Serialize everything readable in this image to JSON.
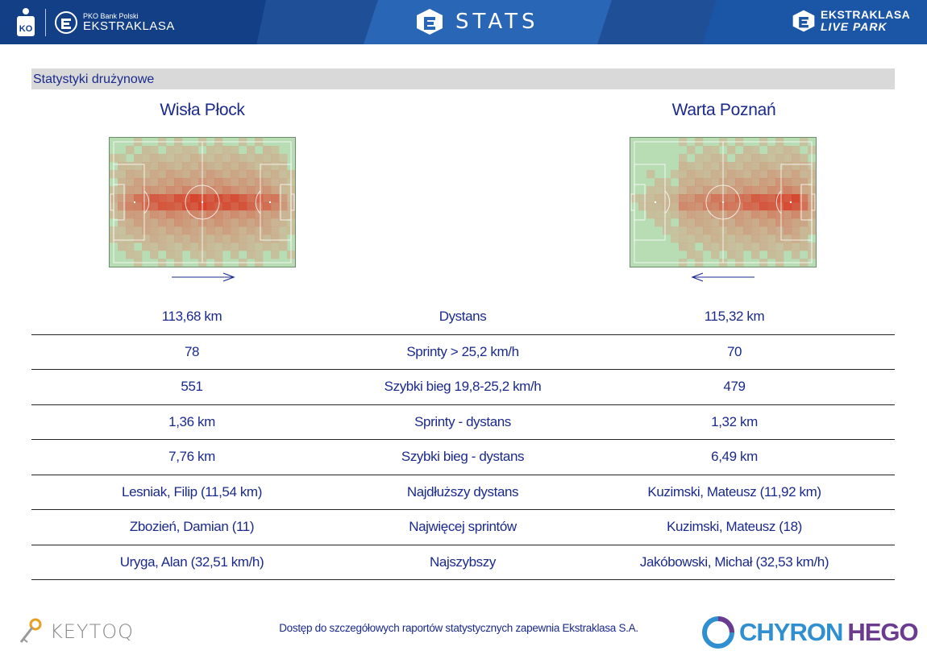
{
  "header": {
    "pko_small": "PKO Bank Polski",
    "ekstraklasa_label": "EKSTRAKLASA",
    "stats_label": "STATS",
    "live_line1": "EKSTRAKLASA",
    "live_line2": "LIVE PARK"
  },
  "section_title": "Statystyki drużynowe",
  "teams": {
    "left": {
      "name": "Wisła Płock",
      "direction": "right"
    },
    "right": {
      "name": "Warta Poznań",
      "direction": "left"
    }
  },
  "stats": [
    {
      "left": "113,68 km",
      "label": "Dystans",
      "right": "115,32 km"
    },
    {
      "left": "78",
      "label": "Sprinty > 25,2 km/h",
      "right": "70"
    },
    {
      "left": "551",
      "label": "Szybki bieg 19,8-25,2 km/h",
      "right": "479"
    },
    {
      "left": "1,36 km",
      "label": "Sprinty - dystans",
      "right": "1,32 km"
    },
    {
      "left": "7,76 km",
      "label": "Szybki bieg - dystans",
      "right": "6,49 km"
    },
    {
      "left": "Lesniak, Filip (11,54 km)",
      "label": "Najdłuższy dystans",
      "right": "Kuzimski, Mateusz (11,92 km)"
    },
    {
      "left": "Zbozień, Damian (11)",
      "label": "Najwięcej sprintów",
      "right": "Kuzimski, Mateusz (18)"
    },
    {
      "left": "Uryga, Alan (32,51 km/h)",
      "label": "Najszybszy",
      "right": "Jakóbowski, Michał (32,53 km/h)"
    }
  ],
  "footer": {
    "text": "Dostęp do szczegółowych raportów statystycznych zapewnia Ekstraklasa S.A.",
    "keytoq": "KEYTOQ",
    "chyron_a": "CHYRON",
    "chyron_b": "HEGO"
  },
  "colors": {
    "header_bg": "#1f4f96",
    "text_blue": "#1a2a8c",
    "section_bg": "#d9d9d9",
    "heat_hot": "#d9341c",
    "pitch_green": "#b8dcb3"
  }
}
